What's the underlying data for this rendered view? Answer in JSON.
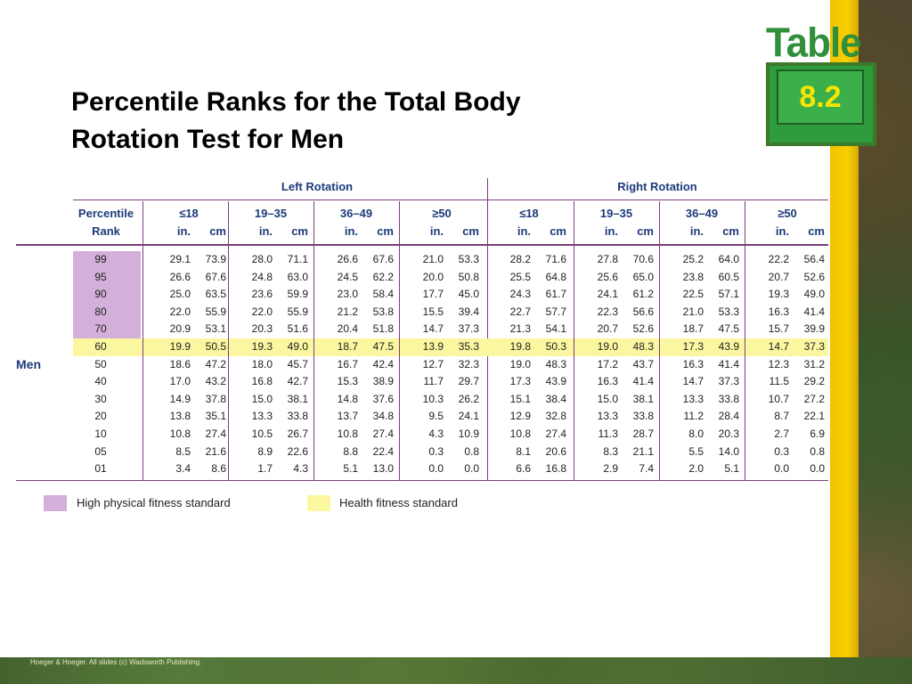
{
  "title": "Percentile Ranks for the Total Body Rotation Test for Men",
  "badge": {
    "word": "Table",
    "number": "8.2"
  },
  "groups": {
    "left": "Left Rotation",
    "right": "Right Rotation"
  },
  "headers": {
    "percentile_line1": "Percentile",
    "percentile_line2": "Rank",
    "age_groups": [
      "≤18",
      "19–35",
      "36–49",
      "≥50",
      "≤18",
      "19–35",
      "36–49",
      "≥50"
    ],
    "unit_in": "in.",
    "unit_cm": "cm"
  },
  "side_label": "Men",
  "rows": [
    {
      "rank": "99",
      "vals": [
        "29.1",
        "73.9",
        "28.0",
        "71.1",
        "26.6",
        "67.6",
        "21.0",
        "53.3",
        "28.2",
        "71.6",
        "27.8",
        "70.6",
        "25.2",
        "64.0",
        "22.2",
        "56.4"
      ]
    },
    {
      "rank": "95",
      "vals": [
        "26.6",
        "67.6",
        "24.8",
        "63.0",
        "24.5",
        "62.2",
        "20.0",
        "50.8",
        "25.5",
        "64.8",
        "25.6",
        "65.0",
        "23.8",
        "60.5",
        "20.7",
        "52.6"
      ]
    },
    {
      "rank": "90",
      "vals": [
        "25.0",
        "63.5",
        "23.6",
        "59.9",
        "23.0",
        "58.4",
        "17.7",
        "45.0",
        "24.3",
        "61.7",
        "24.1",
        "61.2",
        "22.5",
        "57.1",
        "19.3",
        "49.0"
      ]
    },
    {
      "rank": "80",
      "vals": [
        "22.0",
        "55.9",
        "22.0",
        "55.9",
        "21.2",
        "53.8",
        "15.5",
        "39.4",
        "22.7",
        "57.7",
        "22.3",
        "56.6",
        "21.0",
        "53.3",
        "16.3",
        "41.4"
      ]
    },
    {
      "rank": "70",
      "vals": [
        "20.9",
        "53.1",
        "20.3",
        "51.6",
        "20.4",
        "51.8",
        "14.7",
        "37.3",
        "21.3",
        "54.1",
        "20.7",
        "52.6",
        "18.7",
        "47.5",
        "15.7",
        "39.9"
      ]
    },
    {
      "rank": "60",
      "vals": [
        "19.9",
        "50.5",
        "19.3",
        "49.0",
        "18.7",
        "47.5",
        "13.9",
        "35.3",
        "19.8",
        "50.3",
        "19.0",
        "48.3",
        "17.3",
        "43.9",
        "14.7",
        "37.3"
      ]
    },
    {
      "rank": "50",
      "vals": [
        "18.6",
        "47.2",
        "18.0",
        "45.7",
        "16.7",
        "42.4",
        "12.7",
        "32.3",
        "19.0",
        "48.3",
        "17.2",
        "43.7",
        "16.3",
        "41.4",
        "12.3",
        "31.2"
      ]
    },
    {
      "rank": "40",
      "vals": [
        "17.0",
        "43.2",
        "16.8",
        "42.7",
        "15.3",
        "38.9",
        "11.7",
        "29.7",
        "17.3",
        "43.9",
        "16.3",
        "41.4",
        "14.7",
        "37.3",
        "11.5",
        "29.2"
      ]
    },
    {
      "rank": "30",
      "vals": [
        "14.9",
        "37.8",
        "15.0",
        "38.1",
        "14.8",
        "37.6",
        "10.3",
        "26.2",
        "15.1",
        "38.4",
        "15.0",
        "38.1",
        "13.3",
        "33.8",
        "10.7",
        "27.2"
      ]
    },
    {
      "rank": "20",
      "vals": [
        "13.8",
        "35.1",
        "13.3",
        "33.8",
        "13.7",
        "34.8",
        "9.5",
        "24.1",
        "12.9",
        "32.8",
        "13.3",
        "33.8",
        "11.2",
        "28.4",
        "8.7",
        "22.1"
      ]
    },
    {
      "rank": "10",
      "vals": [
        "10.8",
        "27.4",
        "10.5",
        "26.7",
        "10.8",
        "27.4",
        "4.3",
        "10.9",
        "10.8",
        "27.4",
        "11.3",
        "28.7",
        "8.0",
        "20.3",
        "2.7",
        "6.9"
      ]
    },
    {
      "rank": "05",
      "vals": [
        "8.5",
        "21.6",
        "8.9",
        "22.6",
        "8.8",
        "22.4",
        "0.3",
        "0.8",
        "8.1",
        "20.6",
        "8.3",
        "21.1",
        "5.5",
        "14.0",
        "0.3",
        "0.8"
      ]
    },
    {
      "rank": "01",
      "vals": [
        "3.4",
        "8.6",
        "1.7",
        "4.3",
        "5.1",
        "13.0",
        "0.0",
        "0.0",
        "6.6",
        "16.8",
        "2.9",
        "7.4",
        "2.0",
        "5.1",
        "0.0",
        "0.0"
      ]
    }
  ],
  "legend": {
    "high": "High physical fitness standard",
    "health": "Health fitness standard",
    "high_color": "#d2b0da",
    "health_color": "#fbf7a0"
  },
  "credit": "Hoeger & Hoeger. All slides (c) Wadsworth Publishing."
}
